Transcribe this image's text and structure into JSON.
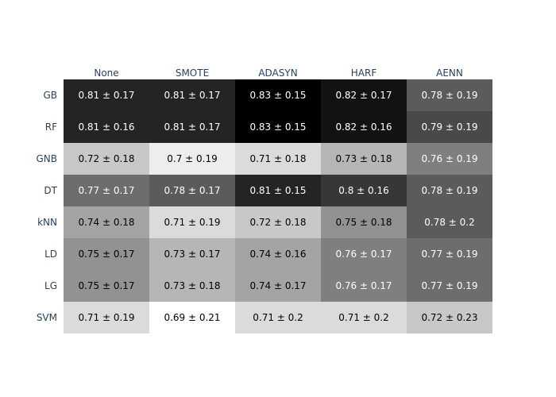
{
  "chart_data": {
    "type": "heatmap",
    "title": "",
    "xlabel": "",
    "ylabel": "",
    "columns": [
      "None",
      "SMOTE",
      "ADASYN",
      "HARF",
      "AENN"
    ],
    "rows": [
      "GB",
      "RF",
      "GNB",
      "DT",
      "kNN",
      "LD",
      "LG",
      "SVM"
    ],
    "cells": [
      [
        {
          "mean": 0.81,
          "sd": 0.17,
          "text": "0.81 ± 0.17"
        },
        {
          "mean": 0.81,
          "sd": 0.17,
          "text": "0.81 ± 0.17"
        },
        {
          "mean": 0.83,
          "sd": 0.15,
          "text": "0.83 ± 0.15"
        },
        {
          "mean": 0.82,
          "sd": 0.17,
          "text": "0.82 ± 0.17"
        },
        {
          "mean": 0.78,
          "sd": 0.19,
          "text": "0.78 ± 0.19"
        }
      ],
      [
        {
          "mean": 0.81,
          "sd": 0.16,
          "text": "0.81 ± 0.16"
        },
        {
          "mean": 0.81,
          "sd": 0.17,
          "text": "0.81 ± 0.17"
        },
        {
          "mean": 0.83,
          "sd": 0.15,
          "text": "0.83 ± 0.15"
        },
        {
          "mean": 0.82,
          "sd": 0.16,
          "text": "0.82 ± 0.16"
        },
        {
          "mean": 0.79,
          "sd": 0.19,
          "text": "0.79 ± 0.19"
        }
      ],
      [
        {
          "mean": 0.72,
          "sd": 0.18,
          "text": "0.72 ± 0.18"
        },
        {
          "mean": 0.7,
          "sd": 0.19,
          "text": "0.7 ± 0.19"
        },
        {
          "mean": 0.71,
          "sd": 0.18,
          "text": "0.71 ± 0.18"
        },
        {
          "mean": 0.73,
          "sd": 0.18,
          "text": "0.73 ± 0.18"
        },
        {
          "mean": 0.76,
          "sd": 0.19,
          "text": "0.76 ± 0.19"
        }
      ],
      [
        {
          "mean": 0.77,
          "sd": 0.17,
          "text": "0.77 ± 0.17"
        },
        {
          "mean": 0.78,
          "sd": 0.17,
          "text": "0.78 ± 0.17"
        },
        {
          "mean": 0.81,
          "sd": 0.15,
          "text": "0.81 ± 0.15"
        },
        {
          "mean": 0.8,
          "sd": 0.16,
          "text": "0.8 ± 0.16"
        },
        {
          "mean": 0.78,
          "sd": 0.19,
          "text": "0.78 ± 0.19"
        }
      ],
      [
        {
          "mean": 0.74,
          "sd": 0.18,
          "text": "0.74 ± 0.18"
        },
        {
          "mean": 0.71,
          "sd": 0.19,
          "text": "0.71 ± 0.19"
        },
        {
          "mean": 0.72,
          "sd": 0.18,
          "text": "0.72 ± 0.18"
        },
        {
          "mean": 0.75,
          "sd": 0.18,
          "text": "0.75 ± 0.18"
        },
        {
          "mean": 0.78,
          "sd": 0.2,
          "text": "0.78 ± 0.2"
        }
      ],
      [
        {
          "mean": 0.75,
          "sd": 0.17,
          "text": "0.75 ± 0.17"
        },
        {
          "mean": 0.73,
          "sd": 0.17,
          "text": "0.73 ± 0.17"
        },
        {
          "mean": 0.74,
          "sd": 0.16,
          "text": "0.74 ± 0.16"
        },
        {
          "mean": 0.76,
          "sd": 0.17,
          "text": "0.76 ± 0.17"
        },
        {
          "mean": 0.77,
          "sd": 0.19,
          "text": "0.77 ± 0.19"
        }
      ],
      [
        {
          "mean": 0.75,
          "sd": 0.17,
          "text": "0.75 ± 0.17"
        },
        {
          "mean": 0.73,
          "sd": 0.18,
          "text": "0.73 ± 0.18"
        },
        {
          "mean": 0.74,
          "sd": 0.17,
          "text": "0.74 ± 0.17"
        },
        {
          "mean": 0.76,
          "sd": 0.17,
          "text": "0.76 ± 0.17"
        },
        {
          "mean": 0.77,
          "sd": 0.19,
          "text": "0.77 ± 0.19"
        }
      ],
      [
        {
          "mean": 0.71,
          "sd": 0.19,
          "text": "0.71 ± 0.19"
        },
        {
          "mean": 0.69,
          "sd": 0.21,
          "text": "0.69 ± 0.21"
        },
        {
          "mean": 0.71,
          "sd": 0.2,
          "text": "0.71 ± 0.2"
        },
        {
          "mean": 0.71,
          "sd": 0.2,
          "text": "0.71 ± 0.2"
        },
        {
          "mean": 0.72,
          "sd": 0.23,
          "text": "0.72 ± 0.23"
        }
      ]
    ],
    "colorscale": {
      "low": "#ffffff",
      "high": "#000000",
      "zmin": 0.69,
      "zmax": 0.83
    },
    "colorbar": false,
    "grid": false,
    "colors": {
      "axis_text": "#2a3f5f",
      "text_on_dark": "#ffffff",
      "text_on_light": "#000000"
    }
  }
}
